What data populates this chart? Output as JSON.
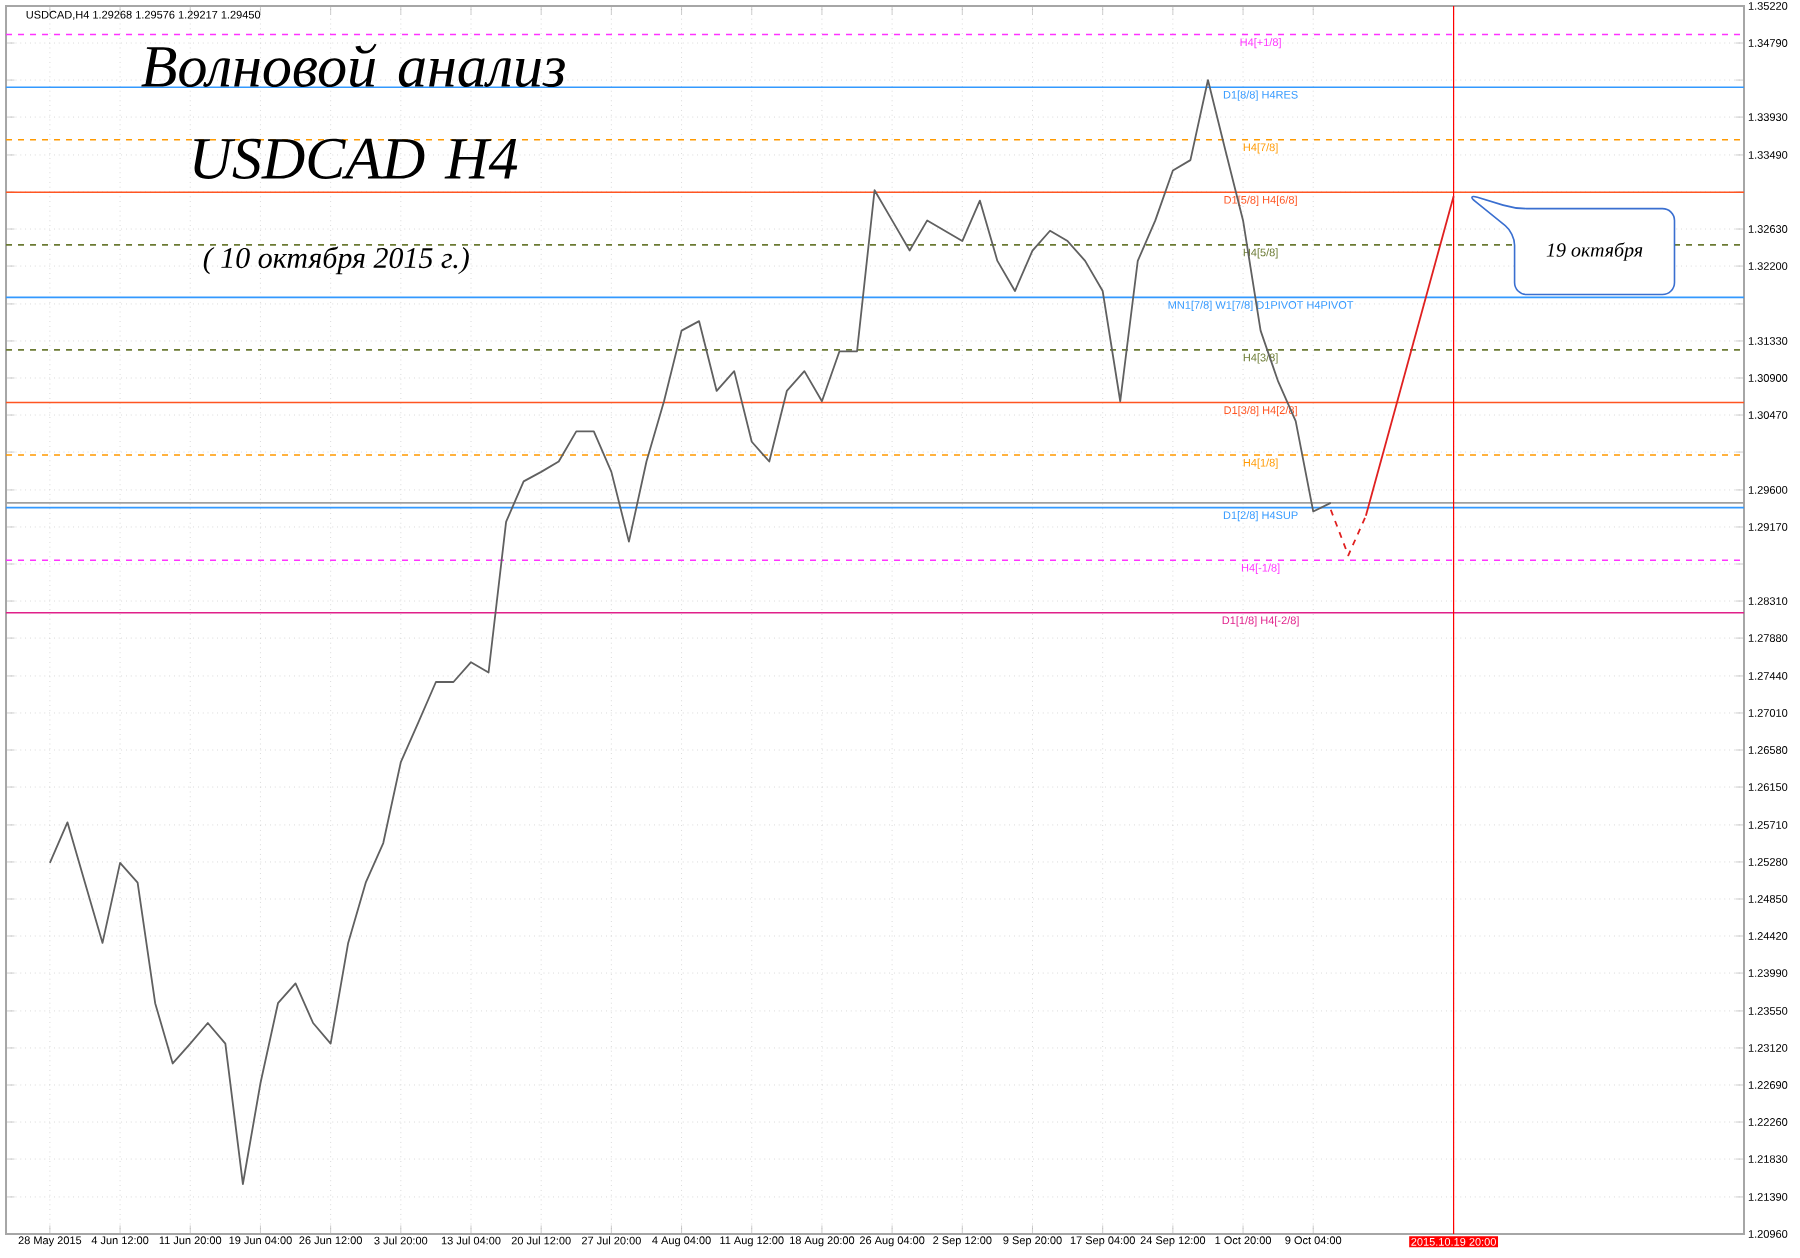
{
  "chart_data": {
    "type": "line",
    "title": "Волновой анализ USDCAD H4",
    "subtitle": "( 10 октября 2015 г.)",
    "annotations": [
      "USDCAD,H4  1.29268 1.29576 1.29217 1.29450",
      "19 октября"
    ],
    "categories": [
      "28 May 2015",
      null,
      null,
      null,
      "4 Jun 12:00",
      null,
      null,
      null,
      "11 Jun 20:00",
      null,
      null,
      null,
      "19 Jun 04:00",
      null,
      null,
      null,
      "26 Jun 12:00",
      null,
      null,
      null,
      "3 Jul 20:00",
      null,
      null,
      null,
      "13 Jul 04:00",
      null,
      null,
      null,
      "20 Jul 12:00",
      null,
      null,
      null,
      "27 Jul 20:00",
      null,
      null,
      null,
      "4 Aug 04:00",
      null,
      null,
      null,
      "11 Aug 12:00",
      null,
      null,
      null,
      "18 Aug 20:00",
      null,
      null,
      null,
      "26 Aug 04:00",
      null,
      null,
      null,
      "2 Sep 12:00",
      null,
      null,
      null,
      "9 Sep 20:00",
      null,
      null,
      null,
      "17 Sep 04:00",
      null,
      null,
      null,
      "24 Sep 12:00",
      null,
      null,
      null,
      "1 Oct 20:00",
      null,
      null,
      null,
      "9 Oct 04:00",
      null,
      null,
      null,
      null,
      null,
      null,
      null,
      "2015.10.19 20:00",
      null,
      null,
      null,
      null,
      null,
      null,
      null,
      null,
      null,
      null,
      null,
      null,
      null,
      null,
      null,
      null
    ],
    "series": [
      {
        "color": "#606060",
        "line_style": "solid",
        "values": [
          1.2527,
          1.2574,
          1.2504,
          1.2434,
          1.2527,
          1.2504,
          1.2364,
          1.2294,
          1.2317,
          1.2341,
          1.2317,
          1.2154,
          1.2271,
          1.2364,
          1.2387,
          1.2341,
          1.2317,
          1.2434,
          1.2504,
          1.255,
          1.2644,
          1.269,
          1.2737,
          1.2737,
          1.276,
          1.2748,
          1.2923,
          1.297,
          1.2981,
          1.2993,
          1.3028,
          1.3028,
          1.2981,
          1.29,
          1.2993,
          1.3063,
          1.3145,
          1.3156,
          1.3075,
          1.3098,
          1.3016,
          1.2993,
          1.3075,
          1.3098,
          1.3063,
          1.3121,
          1.3121,
          1.3308,
          1.3273,
          1.3238,
          1.3273,
          1.3261,
          1.3249,
          1.3296,
          1.3226,
          1.3191,
          1.3238,
          1.3261,
          1.3249,
          1.3226,
          1.3191,
          1.3063,
          1.3226,
          1.3273,
          1.3331,
          1.3343,
          1.3436,
          1.3354,
          1.3273,
          1.3145,
          1.3086,
          1.304,
          1.2935,
          1.2945,
          null,
          null,
          null,
          null,
          null,
          null,
          null,
          null,
          null,
          null,
          null,
          null,
          null,
          null,
          null,
          null,
          null,
          null,
          null,
          null,
          null,
          null,
          null
        ]
      },
      {
        "color": "#e02020",
        "line_style": "dashed",
        "values": [
          null,
          null,
          null,
          null,
          null,
          null,
          null,
          null,
          null,
          null,
          null,
          null,
          null,
          null,
          null,
          null,
          null,
          null,
          null,
          null,
          null,
          null,
          null,
          null,
          null,
          null,
          null,
          null,
          null,
          null,
          null,
          null,
          null,
          null,
          null,
          null,
          null,
          null,
          null,
          null,
          null,
          null,
          null,
          null,
          null,
          null,
          null,
          null,
          null,
          null,
          null,
          null,
          null,
          null,
          null,
          null,
          null,
          null,
          null,
          null,
          null,
          null,
          null,
          null,
          null,
          null,
          null,
          null,
          null,
          null,
          null,
          null,
          null,
          1.2937,
          1.2884,
          1.293,
          null,
          null,
          null,
          null,
          null,
          null,
          null,
          null,
          null,
          null,
          null,
          null,
          null,
          null,
          null,
          null,
          null,
          null,
          null,
          null,
          null
        ]
      },
      {
        "color": "#e02020",
        "line_style": "solid",
        "values": [
          null,
          null,
          null,
          null,
          null,
          null,
          null,
          null,
          null,
          null,
          null,
          null,
          null,
          null,
          null,
          null,
          null,
          null,
          null,
          null,
          null,
          null,
          null,
          null,
          null,
          null,
          null,
          null,
          null,
          null,
          null,
          null,
          null,
          null,
          null,
          null,
          null,
          null,
          null,
          null,
          null,
          null,
          null,
          null,
          null,
          null,
          null,
          null,
          null,
          null,
          null,
          null,
          null,
          null,
          null,
          null,
          null,
          null,
          null,
          null,
          null,
          null,
          null,
          null,
          null,
          null,
          null,
          null,
          null,
          null,
          null,
          null,
          null,
          null,
          null,
          1.293,
          null,
          null,
          null,
          null,
          1.3301,
          null,
          null,
          null,
          null,
          null,
          null,
          null,
          null,
          null,
          null,
          null,
          null,
          null,
          null,
          null,
          null
        ]
      }
    ],
    "ylim": [
      1.2096,
      1.3522
    ],
    "yticks": [
      {
        "value": 1.2096,
        "label": "1.20960"
      },
      {
        "value": 1.2139,
        "label": "1.21390"
      },
      {
        "value": 1.2183,
        "label": "1.21830"
      },
      {
        "value": 1.2226,
        "label": "1.22260"
      },
      {
        "value": 1.2269,
        "label": "1.22690"
      },
      {
        "value": 1.2312,
        "label": "1.23120"
      },
      {
        "value": 1.2355,
        "label": "1.23550"
      },
      {
        "value": 1.2399,
        "label": "1.23990"
      },
      {
        "value": 1.2442,
        "label": "1.24420"
      },
      {
        "value": 1.2485,
        "label": "1.24850"
      },
      {
        "value": 1.2528,
        "label": "1.25280"
      },
      {
        "value": 1.2571,
        "label": "1.25710"
      },
      {
        "value": 1.2615,
        "label": "1.26150"
      },
      {
        "value": 1.2658,
        "label": "1.26580"
      },
      {
        "value": 1.2701,
        "label": "1.27010"
      },
      {
        "value": 1.2744,
        "label": "1.27440"
      },
      {
        "value": 1.2788,
        "label": "1.27880"
      },
      {
        "value": 1.2831,
        "label": "1.28310"
      },
      {
        "value": 1.2874,
        "label": null
      },
      {
        "value": 1.2917,
        "label": "1.29170"
      },
      {
        "value": 1.296,
        "label": "1.29600"
      },
      {
        "value": 1.3004,
        "label": null
      },
      {
        "value": 1.3047,
        "label": "1.30470"
      },
      {
        "value": 1.309,
        "label": "1.30900"
      },
      {
        "value": 1.3133,
        "label": "1.31330"
      },
      {
        "value": 1.3176,
        "label": null
      },
      {
        "value": 1.322,
        "label": "1.32200"
      },
      {
        "value": 1.3263,
        "label": "1.32630"
      },
      {
        "value": 1.3306,
        "label": null
      },
      {
        "value": 1.3349,
        "label": "1.33490"
      },
      {
        "value": 1.3393,
        "label": "1.33930"
      },
      {
        "value": 1.3436,
        "label": null
      },
      {
        "value": 1.3479,
        "label": "1.34790"
      },
      {
        "value": 1.3522,
        "label": "1.35220"
      }
    ],
    "ref_lines": [
      {
        "axis": "y",
        "value": 1.34888,
        "label": "H4[+1/8]",
        "color": "#ff33ff",
        "line_style": "dashed"
      },
      {
        "axis": "y",
        "value": 1.34277,
        "label": "D1[8/8] H4RES",
        "color": "#3399ff",
        "line_style": "solid"
      },
      {
        "axis": "y",
        "value": 1.33667,
        "label": "H4[7/8]",
        "color": "#ff9900",
        "line_style": "dashed"
      },
      {
        "axis": "y",
        "value": 1.33057,
        "label": "D1[5/8] H4[6/8]",
        "color": "#ff5522",
        "line_style": "solid"
      },
      {
        "axis": "y",
        "value": 1.32446,
        "label": "H4[5/8]",
        "color": "#6b7a33",
        "line_style": "dashed"
      },
      {
        "axis": "y",
        "value": 1.31836,
        "label": "MN1[7/8] W1[7/8] D1PIVOT H4PIVOT",
        "color": "#3399ff",
        "line_style": "solid"
      },
      {
        "axis": "y",
        "value": 1.31226,
        "label": "H4[3/8]",
        "color": "#6b7a33",
        "line_style": "dashed"
      },
      {
        "axis": "y",
        "value": 1.30615,
        "label": "D1[3/8] H4[2/8]",
        "color": "#ff5522",
        "line_style": "solid"
      },
      {
        "axis": "y",
        "value": 1.30005,
        "label": "H4[1/8]",
        "color": "#ff9900",
        "line_style": "dashed"
      },
      {
        "axis": "y",
        "value": 1.2945,
        "color": "#a0a0a0",
        "line_style": "solid"
      },
      {
        "axis": "y",
        "value": 1.29395,
        "label": "D1[2/8] H4SUP",
        "color": "#3399ff",
        "line_style": "solid"
      },
      {
        "axis": "y",
        "value": 1.28784,
        "label": "H4[-1/8]",
        "color": "#ff33ff",
        "line_style": "dashed"
      },
      {
        "axis": "y",
        "value": 1.28174,
        "label": "D1[1/8] H4[-2/8]",
        "color": "#e0208a",
        "line_style": "solid"
      },
      {
        "axis": "x",
        "value": "2015.10.19 20:00",
        "color": "#ff0000",
        "line_style": "solid"
      }
    ],
    "grid": true
  }
}
